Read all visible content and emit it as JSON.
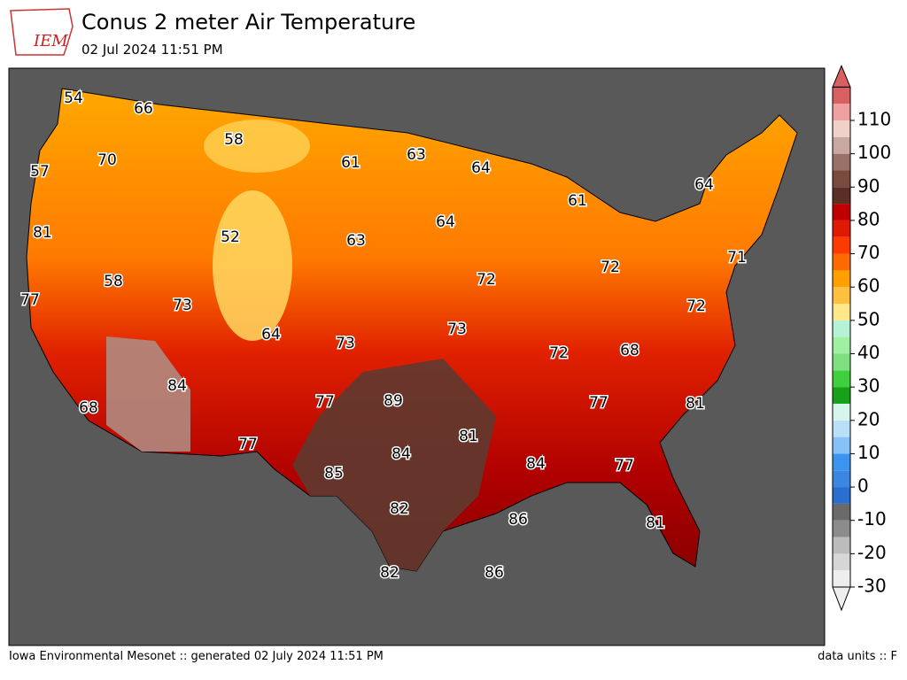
{
  "header": {
    "title": "Conus 2 meter Air Temperature",
    "subtitle": "02 Jul 2024 11:51 PM",
    "logo": "IEM"
  },
  "map": {
    "labels": [
      54,
      66,
      58,
      61,
      63,
      64,
      61,
      64,
      57,
      70,
      81,
      52,
      63,
      64,
      72,
      71,
      77,
      58,
      73,
      72,
      72,
      64,
      73,
      73,
      72,
      68,
      84,
      68,
      77,
      89,
      77,
      81,
      81,
      77,
      84,
      84,
      77,
      85,
      82,
      86,
      81,
      82,
      86
    ]
  },
  "colorbar": {
    "ticks": [
      -30,
      -20,
      -10,
      0,
      10,
      20,
      30,
      40,
      50,
      60,
      70,
      80,
      90,
      100,
      110
    ],
    "colors": [
      "#eeeeee",
      "#d6d6d6",
      "#bcbcbc",
      "#8c8c8c",
      "#6a6a6a",
      "#2a6fd0",
      "#3a86e0",
      "#3b95ee",
      "#86c2f7",
      "#b9e0f8",
      "#d6f5ec",
      "#17a11a",
      "#3fcf3f",
      "#7fe07f",
      "#9ff0a0",
      "#b5f2d6",
      "#ffe88a",
      "#ffc040",
      "#ff9f00",
      "#ff6a00",
      "#ff3a00",
      "#e01a00",
      "#c00000",
      "#5a3026",
      "#7a4a3f",
      "#9a7068",
      "#c8a8a0",
      "#f0d0c8",
      "#f0a0a0",
      "#d86060"
    ]
  },
  "footer": {
    "left": "Iowa Environmental Mesonet :: generated 02 July 2024 11:51 PM",
    "right": "data units :: F"
  }
}
